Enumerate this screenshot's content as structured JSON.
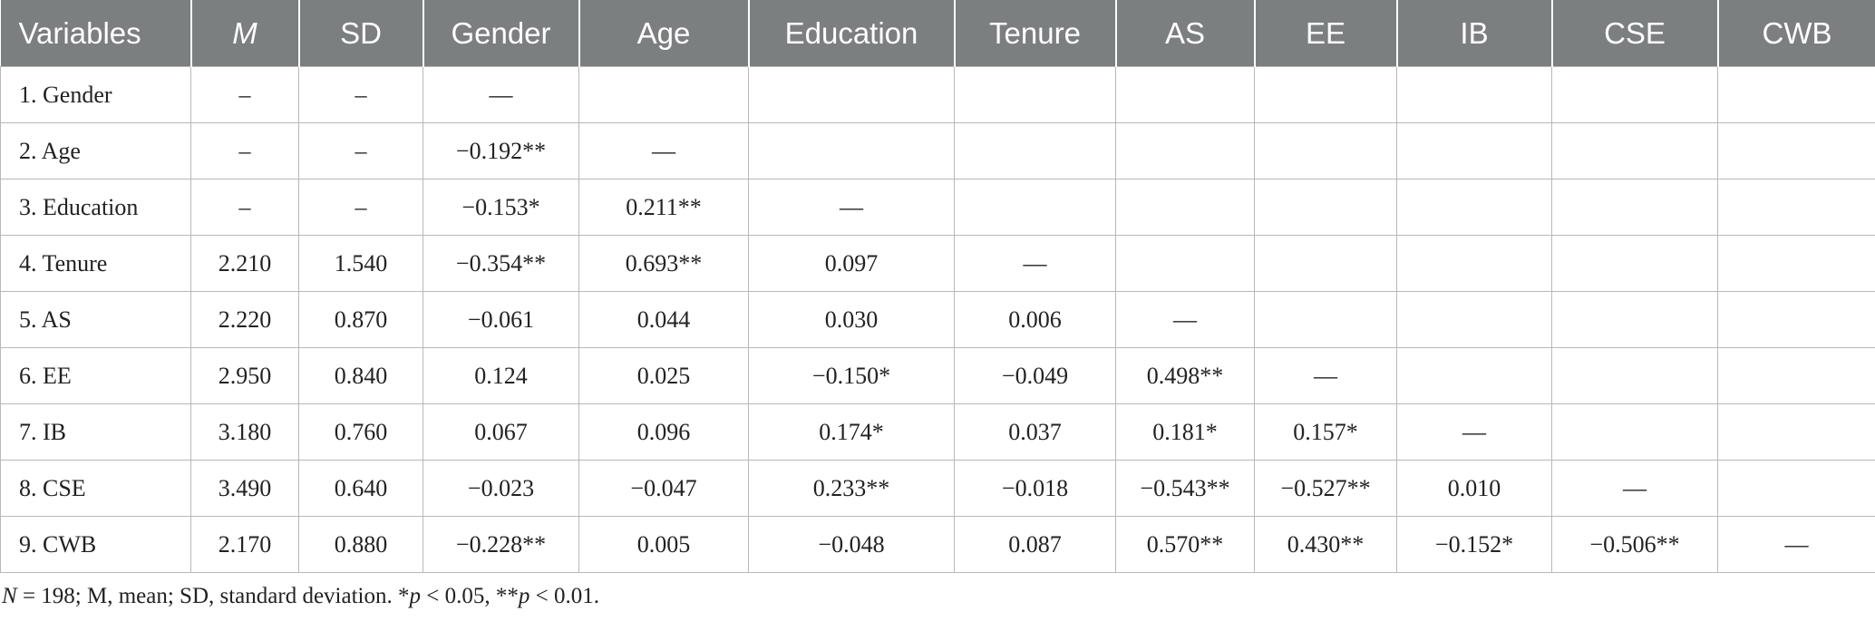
{
  "headers": [
    "Variables",
    "M",
    "SD",
    "Gender",
    "Age",
    "Education",
    "Tenure",
    "AS",
    "EE",
    "IB",
    "CSE",
    "CWB"
  ],
  "rows": [
    [
      "1. Gender",
      "–",
      "–",
      "—",
      "",
      "",
      "",
      "",
      "",
      "",
      "",
      ""
    ],
    [
      "2. Age",
      "–",
      "–",
      "−0.192**",
      "—",
      "",
      "",
      "",
      "",
      "",
      "",
      ""
    ],
    [
      "3. Education",
      "–",
      "–",
      "−0.153*",
      "0.211**",
      "—",
      "",
      "",
      "",
      "",
      "",
      ""
    ],
    [
      "4. Tenure",
      "2.210",
      "1.540",
      "−0.354**",
      "0.693**",
      "0.097",
      "—",
      "",
      "",
      "",
      "",
      ""
    ],
    [
      "5. AS",
      "2.220",
      "0.870",
      "−0.061",
      "0.044",
      "0.030",
      "0.006",
      "—",
      "",
      "",
      "",
      ""
    ],
    [
      "6. EE",
      "2.950",
      "0.840",
      "0.124",
      "0.025",
      "−0.150*",
      "−0.049",
      "0.498**",
      "—",
      "",
      "",
      ""
    ],
    [
      "7. IB",
      "3.180",
      "0.760",
      "0.067",
      "0.096",
      "0.174*",
      "0.037",
      "0.181*",
      "0.157*",
      "—",
      "",
      ""
    ],
    [
      "8. CSE",
      "3.490",
      "0.640",
      "−0.023",
      "−0.047",
      "0.233**",
      "−0.018",
      "−0.543**",
      "−0.527**",
      "0.010",
      "—",
      ""
    ],
    [
      "9. CWB",
      "2.170",
      "0.880",
      "−0.228**",
      "0.005",
      "−0.048",
      "0.087",
      "0.570**",
      "0.430**",
      "−0.152*",
      "−0.506**",
      "—"
    ]
  ],
  "note": {
    "n_symbol": "N",
    "n_text": " = 198; M, mean; SD, standard deviation. *",
    "p1_symbol": "p",
    "p1_text": " < 0.05, **",
    "p2_symbol": "p",
    "p2_text": " < 0.01."
  }
}
